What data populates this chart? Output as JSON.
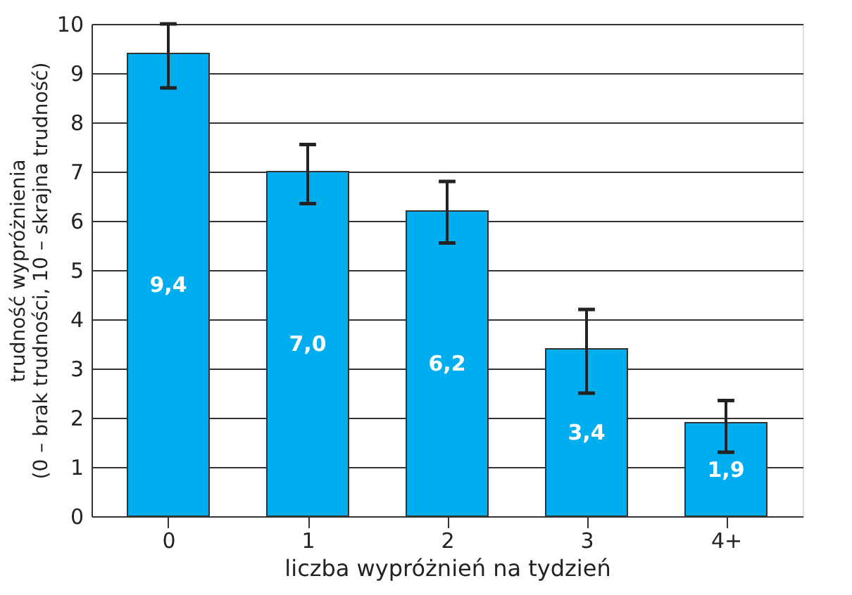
{
  "chart_data": {
    "type": "bar",
    "xlabel": "liczba wypróżnień na tydzień",
    "ylabel": "trudność wypróżnienia\n(0 – brak trudności, 10 – skrajna trudność)",
    "categories": [
      "0",
      "1",
      "2",
      "3",
      "4+"
    ],
    "values": [
      9.4,
      7.0,
      6.2,
      3.4,
      1.9
    ],
    "value_labels": [
      "9,4",
      "7,0",
      "6,2",
      "3,4",
      "1,9"
    ],
    "errors": [
      [
        8.7,
        10.0
      ],
      [
        6.35,
        7.55
      ],
      [
        5.55,
        6.8
      ],
      [
        2.5,
        4.2
      ],
      [
        1.3,
        2.35
      ]
    ],
    "color": "#00adef",
    "ylim": [
      0,
      10
    ],
    "yticks": [
      0,
      1,
      2,
      3,
      4,
      5,
      6,
      7,
      8,
      9,
      10
    ],
    "grid": "y"
  }
}
